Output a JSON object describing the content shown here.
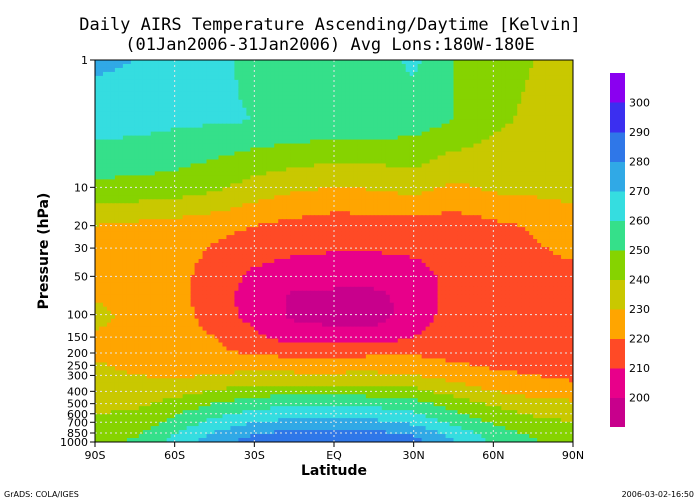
{
  "chart_data": {
    "type": "heatmap",
    "title_line1": "Daily AIRS Temperature Ascending/Daytime [Kelvin]",
    "title_line2": "(01Jan2006-31Jan2006)  Avg Lons:180W-180E",
    "xlabel": "Latitude",
    "ylabel": "Pressure (hPa)",
    "x_ticks": [
      {
        "value": -90,
        "label": "90S"
      },
      {
        "value": -60,
        "label": "60S"
      },
      {
        "value": -30,
        "label": "30S"
      },
      {
        "value": 0,
        "label": "EQ"
      },
      {
        "value": 30,
        "label": "30N"
      },
      {
        "value": 60,
        "label": "60N"
      },
      {
        "value": 90,
        "label": "90N"
      }
    ],
    "y_scale": "log",
    "y_reversed": true,
    "ylim": [
      1000,
      1
    ],
    "y_ticks": [
      1,
      10,
      20,
      30,
      50,
      100,
      150,
      200,
      250,
      300,
      400,
      500,
      600,
      700,
      850,
      1000
    ],
    "grid": true,
    "colorbar": {
      "levels": [
        200,
        210,
        220,
        230,
        240,
        250,
        260,
        270,
        280,
        290,
        300
      ],
      "colors": [
        "#c8008c",
        "#e8008a",
        "#ff4a26",
        "#ffa500",
        "#c9c800",
        "#86d300",
        "#35e08a",
        "#35dde0",
        "#30a9e6",
        "#2f77e8",
        "#3b2ff0",
        "#8a00f0"
      ]
    },
    "latitudes": [
      -90,
      -75,
      -60,
      -45,
      -30,
      -15,
      0,
      15,
      30,
      45,
      60,
      75,
      90
    ],
    "pressures": [
      1,
      3,
      10,
      20,
      30,
      50,
      70,
      100,
      150,
      200,
      300,
      400,
      500,
      600,
      700,
      850,
      1000
    ],
    "values": [
      [
        272,
        270,
        265,
        262,
        258,
        255,
        256,
        255,
        262,
        250,
        245,
        240,
        238
      ],
      [
        265,
        264,
        262,
        261,
        260,
        259,
        258,
        257,
        255,
        250,
        242,
        238,
        236
      ],
      [
        248,
        247,
        246,
        242,
        236,
        232,
        230,
        231,
        234,
        228,
        232,
        233,
        234
      ],
      [
        230,
        228,
        226,
        224,
        220,
        217,
        215,
        215,
        216,
        215,
        218,
        221,
        225
      ],
      [
        228,
        226,
        224,
        219,
        214,
        212,
        211,
        211,
        212,
        214,
        216,
        219,
        222
      ],
      [
        228,
        225,
        223,
        216,
        208,
        205,
        204,
        204,
        206,
        213,
        217,
        219,
        217
      ],
      [
        229,
        227,
        223,
        215,
        205,
        199,
        198,
        198,
        203,
        214,
        216,
        218,
        216
      ],
      [
        232,
        228,
        224,
        216,
        206,
        198,
        196,
        196,
        204,
        215,
        216,
        217,
        215
      ],
      [
        229,
        228,
        224,
        220,
        212,
        205,
        204,
        204,
        210,
        214,
        215,
        215,
        214
      ],
      [
        229,
        227,
        224,
        222,
        219,
        217,
        217,
        218,
        219,
        216,
        215,
        214,
        214
      ],
      [
        232,
        230,
        229,
        230,
        233,
        232,
        232,
        232,
        230,
        226,
        222,
        220,
        218
      ],
      [
        234,
        234,
        236,
        241,
        245,
        246,
        246,
        245,
        243,
        236,
        230,
        226,
        224
      ],
      [
        238,
        238,
        243,
        250,
        256,
        258,
        258,
        257,
        254,
        246,
        238,
        234,
        232
      ],
      [
        240,
        241,
        249,
        257,
        263,
        266,
        266,
        265,
        261,
        252,
        244,
        239,
        236
      ],
      [
        242,
        244,
        253,
        263,
        270,
        273,
        273,
        272,
        268,
        258,
        249,
        243,
        240
      ],
      [
        244,
        248,
        259,
        271,
        279,
        283,
        283,
        282,
        278,
        266,
        255,
        248,
        244
      ],
      [
        246,
        252,
        264,
        276,
        285,
        291,
        292,
        290,
        284,
        271,
        259,
        251,
        248
      ]
    ]
  },
  "footer": {
    "left": "GrADS: COLA/IGES",
    "right": "2006-03-02-16:50"
  }
}
